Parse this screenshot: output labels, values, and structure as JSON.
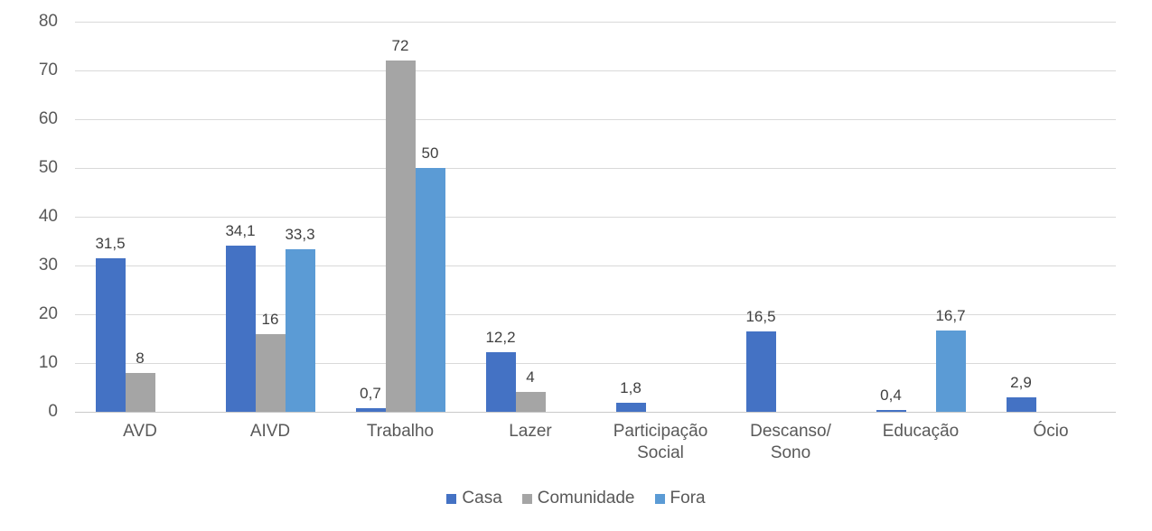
{
  "chart_data": {
    "type": "bar",
    "title": "",
    "xlabel": "",
    "ylabel": "",
    "categories": [
      "AVD",
      "AIVD",
      "Trabalho",
      "Lazer",
      "Participação\nSocial",
      "Descanso/\nSono",
      "Educação",
      "Ócio"
    ],
    "series": [
      {
        "name": "Casa",
        "color": "#4472C4",
        "values": [
          31.5,
          34.1,
          0.7,
          12.2,
          1.8,
          16.5,
          0.4,
          2.9
        ],
        "labels": [
          "31,5",
          "34,1",
          "0,7",
          "12,2",
          "1,8",
          "16,5",
          "0,4",
          "2,9"
        ]
      },
      {
        "name": "Comunidade",
        "color": "#A5A5A5",
        "values": [
          8,
          16,
          72,
          4,
          null,
          null,
          null,
          null
        ],
        "labels": [
          "8",
          "16",
          "72",
          "4",
          "",
          "",
          "",
          ""
        ]
      },
      {
        "name": "Fora",
        "color": "#5B9BD5",
        "values": [
          null,
          33.3,
          50,
          null,
          null,
          null,
          16.7,
          null
        ],
        "labels": [
          "",
          "33,3",
          "50",
          "",
          "",
          "",
          "16,7",
          ""
        ]
      }
    ],
    "y_ticks": [
      "0",
      "10",
      "20",
      "30",
      "40",
      "50",
      "60",
      "70",
      "80"
    ],
    "ylim": [
      0,
      80
    ],
    "grid": true,
    "legend_position": "bottom",
    "gridline_color": "#D9D9D9",
    "axis_text_color": "#595959",
    "data_label_color": "#404040"
  }
}
